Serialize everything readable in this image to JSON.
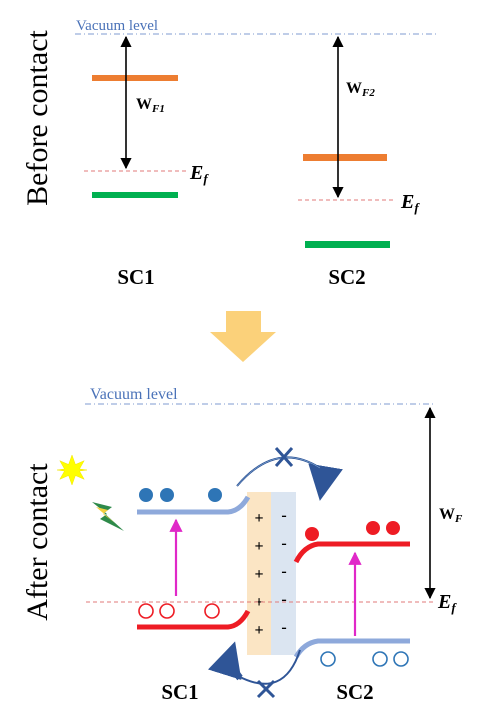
{
  "before_panel": {
    "side_label": "Before contact",
    "vacuum_label": "Vacuum level",
    "wf1_main": "W",
    "wf1_sub": "F1",
    "wf2_main": "W",
    "wf2_sub": "F2",
    "ef_main": "E",
    "ef_sub": "f",
    "sc1_label": "SC1",
    "sc2_label": "SC2"
  },
  "after_panel": {
    "side_label": "After contact",
    "vacuum_label": "Vacuum level",
    "wf_main": "W",
    "wf_sub": "F",
    "ef_main": "E",
    "ef_sub": "f",
    "plus_signs": [
      "+",
      "+",
      "+",
      "+",
      "+"
    ],
    "minus_signs": [
      "-",
      "-",
      "-",
      "-",
      "-"
    ],
    "sc1_label": "SC1",
    "sc2_label": "SC2"
  },
  "colors": {
    "vacuum_line": "#7f9bd0",
    "vacuum_text": "#4a72b8",
    "ef_line": "#e07a7a",
    "conduction_sc": "#ed7d31",
    "valence_sc": "#00b050",
    "band_red": "#ee1c24",
    "band_blue": "#8ea9db",
    "electron": "#2e75b6",
    "arrow_gray": "#2f5597",
    "excitation": "#e028c8",
    "transition_arrow": "#fbd17a",
    "depletion_plus": "#fbe5c4",
    "depletion_minus": "#dbe5f1",
    "sun": "#ffff00",
    "lightning": "#2e8a4a"
  },
  "icons": {
    "sun": "sun-icon",
    "lightning": "lightning-icon",
    "blocked": "cross-mark-icon"
  }
}
